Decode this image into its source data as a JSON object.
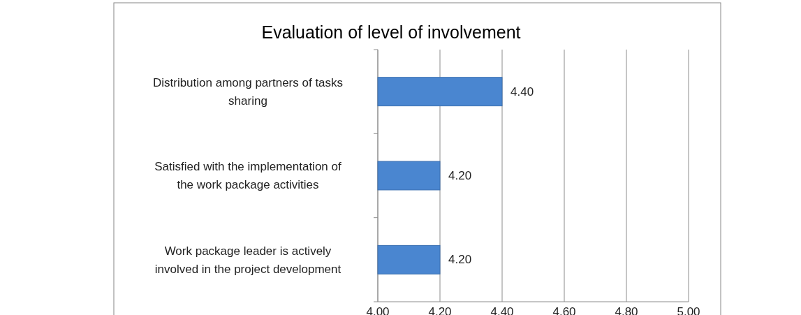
{
  "chart_data": {
    "type": "bar",
    "orientation": "horizontal",
    "title": "Evaluation of level of involvement",
    "categories": [
      "Distribution among partners of tasks sharing",
      "Satisfied with the implementation of the work package activities",
      "Work package leader is actively involved in the project development"
    ],
    "values": [
      4.4,
      4.2,
      4.2
    ],
    "color": "#4a86d0",
    "value_labels": [
      "4.40",
      "4.20",
      "4.20"
    ],
    "xlim": [
      4,
      5
    ],
    "xticks": [
      {
        "value": 4,
        "label": "4.00"
      },
      {
        "value": 4.2,
        "label": "4.20"
      },
      {
        "value": 4.4,
        "label": "4.40"
      },
      {
        "value": 4.6,
        "label": "4.60"
      },
      {
        "value": 4.8,
        "label": "4.80"
      },
      {
        "value": 5,
        "label": "5.00"
      }
    ],
    "grid": "x"
  }
}
